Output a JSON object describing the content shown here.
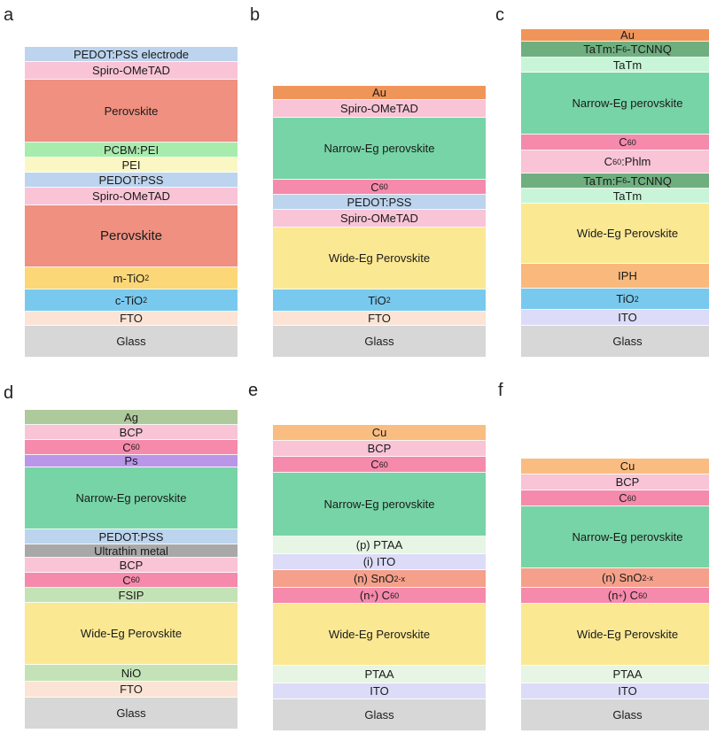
{
  "panels": [
    {
      "letter": "a",
      "layers": [
        {
          "label": "PEDOT:PSS electrode",
          "color": "#bcd4ee",
          "h": 17
        },
        {
          "label": "Spiro-OMeTAD",
          "color": "#f9c4d6",
          "h": 20
        },
        {
          "label": "Perovskite",
          "color": "#ef9080",
          "h": 71
        },
        {
          "label": "PCBM:PEI",
          "color": "#a8ecad",
          "h": 17
        },
        {
          "label": "PEI",
          "color": "#fbf7c5",
          "h": 17
        },
        {
          "label": "PEDOT:PSS",
          "color": "#bcd4ee",
          "h": 17
        },
        {
          "label": "Spiro-OMeTAD",
          "color": "#f9c4d6",
          "h": 20
        },
        {
          "label": "Perovskite",
          "color": "#ef9080",
          "h": 70,
          "big": true
        },
        {
          "label": "m-TiO",
          "sub": "2",
          "color": "#fcd777",
          "h": 25
        },
        {
          "label": "c-TiO",
          "sub": "2",
          "color": "#79c9ef",
          "h": 25
        },
        {
          "label": "FTO",
          "color": "#fbe4d6",
          "h": 16
        },
        {
          "label": "Glass",
          "color": "#d7d7d7",
          "h": 36
        }
      ]
    },
    {
      "letter": "b",
      "layers": [
        {
          "label": "Au",
          "color": "#f0955a",
          "h": 16
        },
        {
          "label": "Spiro-OMeTAD",
          "color": "#f9c4d6",
          "h": 20
        },
        {
          "label": "Narrow-Eg perovskite",
          "color": "#77d4a6",
          "h": 70
        },
        {
          "label": "C",
          "sub": "60",
          "color": "#f58aac",
          "h": 17
        },
        {
          "label": "PEDOT:PSS",
          "color": "#bcd4ee",
          "h": 17
        },
        {
          "label": "Spiro-OMeTAD",
          "color": "#f9c4d6",
          "h": 20
        },
        {
          "label": "Wide-Eg Perovskite",
          "color": "#fbe893",
          "h": 70
        },
        {
          "label": "TiO",
          "sub": "2",
          "color": "#79c9ef",
          "h": 25
        },
        {
          "label": "FTO",
          "color": "#fbe4d6",
          "h": 16
        },
        {
          "label": "Glass",
          "color": "#d7d7d7",
          "h": 36
        }
      ]
    },
    {
      "letter": "c",
      "layers": [
        {
          "label": "Au",
          "color": "#f0955a",
          "h": 14
        },
        {
          "label": "TaTm:F",
          "sub": "6",
          "tail": "-TCNNQ",
          "color": "#6faf7f",
          "h": 18
        },
        {
          "label": "TaTm",
          "color": "#c8f5d8",
          "h": 17
        },
        {
          "label": "Narrow-Eg perovskite",
          "color": "#77d4a6",
          "h": 70
        },
        {
          "label": "C",
          "sub": "60",
          "color": "#f58aac",
          "h": 18
        },
        {
          "label": "C",
          "sub": "60",
          "tail": ":Phlm",
          "color": "#f9c4d6",
          "h": 26
        },
        {
          "label": "TaTm:F",
          "sub": "6",
          "tail": "-TCNNQ",
          "color": "#6faf7f",
          "h": 17
        },
        {
          "label": "TaTm",
          "color": "#c8f5d8",
          "h": 17
        },
        {
          "label": "Wide-Eg Perovskite",
          "color": "#fbe893",
          "h": 68
        },
        {
          "label": "IPH",
          "color": "#f9b97c",
          "h": 28
        },
        {
          "label": "TiO",
          "sub": "2",
          "color": "#79c9ef",
          "h": 24
        },
        {
          "label": "ITO",
          "color": "#dcdcf8",
          "h": 18
        },
        {
          "label": "Glass",
          "color": "#d7d7d7",
          "h": 36
        }
      ]
    },
    {
      "letter": "d",
      "layers": [
        {
          "label": "Ag",
          "color": "#aec99b",
          "h": 17
        },
        {
          "label": "BCP",
          "color": "#f9c4d6",
          "h": 17
        },
        {
          "label": "C",
          "sub": "60",
          "color": "#f58aac",
          "h": 17
        },
        {
          "label": "Ps",
          "color": "#b996e8",
          "h": 14
        },
        {
          "label": "Narrow-Eg perovskite",
          "color": "#77d4a6",
          "h": 70
        },
        {
          "label": "PEDOT:PSS",
          "color": "#bcd4ee",
          "h": 17
        },
        {
          "label": "Ultrathin metal",
          "color": "#a8a8a8",
          "h": 15
        },
        {
          "label": "BCP",
          "color": "#f9c4d6",
          "h": 17
        },
        {
          "label": "C",
          "sub": "60",
          "color": "#f58aac",
          "h": 17
        },
        {
          "label": "FSIP",
          "color": "#c3e3b6",
          "h": 17
        },
        {
          "label": "Wide-Eg Perovskite",
          "color": "#fbe893",
          "h": 70
        },
        {
          "label": "NiO",
          "color": "#c3e3b6",
          "h": 19
        },
        {
          "label": "FTO",
          "color": "#fbe4d6",
          "h": 18
        },
        {
          "label": "Glass",
          "color": "#d7d7d7",
          "h": 36
        }
      ]
    },
    {
      "letter": "e",
      "layers": [
        {
          "label": "Cu",
          "color": "#f9bd82",
          "h": 18
        },
        {
          "label": "BCP",
          "color": "#f9c4d6",
          "h": 18
        },
        {
          "label": "C",
          "sub": "60",
          "color": "#f58aac",
          "h": 18
        },
        {
          "label": "Narrow-Eg perovskite",
          "color": "#77d4a6",
          "h": 72
        },
        {
          "label": "(p) PTAA",
          "color": "#e7f5e4",
          "h": 20
        },
        {
          "label": "(i) ITO",
          "color": "#dcdcf8",
          "h": 18
        },
        {
          "label": "(n) SnO",
          "sub": "2-x",
          "color": "#f5a08a",
          "h": 20
        },
        {
          "label": "(n",
          "sup": "+",
          "tail": ") C",
          "sub2": "60",
          "color": "#f58aac",
          "h": 18
        },
        {
          "label": "Wide-Eg Perovskite",
          "color": "#fbe893",
          "h": 70
        },
        {
          "label": "PTAA",
          "color": "#e7f5e4",
          "h": 20
        },
        {
          "label": "ITO",
          "color": "#dcdcf8",
          "h": 18
        },
        {
          "label": "Glass",
          "color": "#d7d7d7",
          "h": 36
        }
      ]
    },
    {
      "letter": "f",
      "layers": [
        {
          "label": "Cu",
          "color": "#f9bd82",
          "h": 18
        },
        {
          "label": "BCP",
          "color": "#f9c4d6",
          "h": 18
        },
        {
          "label": "C",
          "sub": "60",
          "color": "#f58aac",
          "h": 18
        },
        {
          "label": "Narrow-Eg perovskite",
          "color": "#77d4a6",
          "h": 70
        },
        {
          "label": "(n) SnO",
          "sub": "2-x",
          "color": "#f5a08a",
          "h": 22
        },
        {
          "label": "(n",
          "sup": "+",
          "tail": ") C",
          "sub2": "60",
          "color": "#f58aac",
          "h": 18
        },
        {
          "label": "Wide-Eg Perovskite",
          "color": "#fbe893",
          "h": 70
        },
        {
          "label": "PTAA",
          "color": "#e7f5e4",
          "h": 20
        },
        {
          "label": "ITO",
          "color": "#dcdcf8",
          "h": 18
        },
        {
          "label": "Glass",
          "color": "#d7d7d7",
          "h": 36
        }
      ]
    }
  ]
}
